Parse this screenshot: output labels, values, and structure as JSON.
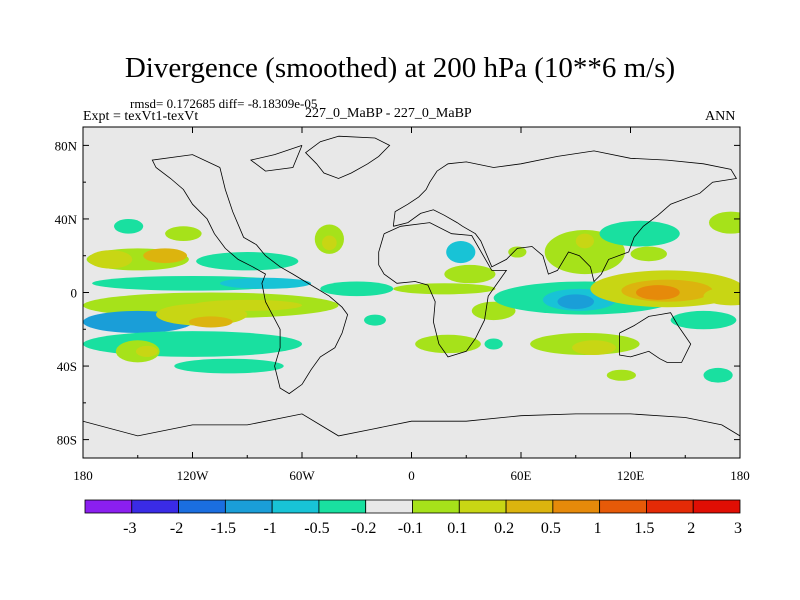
{
  "chart_data": {
    "type": "heatmap",
    "title": "Divergence (smoothed) at 200 hPa (10**6 m/s)",
    "stats": "rmsd= 0.172685 diff= -8.18309e-05",
    "experiment": "Expt = texVt1-texVt",
    "cases": "227_0_MaBP - 227_0_MaBP",
    "season": "ANN",
    "x_range": [
      -180,
      180
    ],
    "y_range": [
      -90,
      90
    ],
    "x_ticks": [
      {
        "value": -180,
        "label": "180"
      },
      {
        "value": -120,
        "label": "120W"
      },
      {
        "value": -60,
        "label": "60W"
      },
      {
        "value": 0,
        "label": "0"
      },
      {
        "value": 60,
        "label": "60E"
      },
      {
        "value": 120,
        "label": "120E"
      },
      {
        "value": 180,
        "label": "180"
      }
    ],
    "y_ticks": [
      {
        "value": 80,
        "label": "80N"
      },
      {
        "value": 40,
        "label": "40N"
      },
      {
        "value": 0,
        "label": "0"
      },
      {
        "value": -40,
        "label": "40S"
      },
      {
        "value": -80,
        "label": "80S"
      }
    ],
    "colorbar": {
      "colors": [
        "#8b1ff0",
        "#3a2be6",
        "#1a6ee0",
        "#1a9ed8",
        "#18c3d6",
        "#19e0a0",
        "#e8e8e8",
        "#a6e21a",
        "#c8d614",
        "#dcb40e",
        "#e68a0a",
        "#e65a08",
        "#e42a06",
        "#e00e04"
      ],
      "labels": [
        "-3",
        "-2",
        "-1.5",
        "-1",
        "-0.5",
        "-0.2",
        "-0.1",
        "0.1",
        "0.2",
        "0.5",
        "1",
        "1.5",
        "2",
        "3"
      ]
    },
    "field_patches": [
      {
        "lon": -150,
        "lat": 18,
        "rx": 28,
        "ry": 6,
        "level": 7
      },
      {
        "lon": -165,
        "lat": 18,
        "rx": 12,
        "ry": 5,
        "level": 8
      },
      {
        "lon": -135,
        "lat": 20,
        "rx": 12,
        "ry": 4,
        "level": 9
      },
      {
        "lon": -90,
        "lat": 17,
        "rx": 28,
        "ry": 5,
        "level": 5
      },
      {
        "lon": -155,
        "lat": 36,
        "rx": 8,
        "ry": 4,
        "level": 5
      },
      {
        "lon": -125,
        "lat": 32,
        "rx": 10,
        "ry": 4,
        "level": 7
      },
      {
        "lon": -45,
        "lat": 29,
        "rx": 8,
        "ry": 8,
        "level": 7
      },
      {
        "lon": -45,
        "lat": 27,
        "rx": 4,
        "ry": 4,
        "level": 8
      },
      {
        "lon": -120,
        "lat": 5,
        "rx": 55,
        "ry": 4,
        "level": 5
      },
      {
        "lon": -80,
        "lat": 5,
        "rx": 25,
        "ry": 3,
        "level": 4
      },
      {
        "lon": -30,
        "lat": 2,
        "rx": 20,
        "ry": 4,
        "level": 5
      },
      {
        "lon": -110,
        "lat": -7,
        "rx": 70,
        "ry": 7,
        "level": 7
      },
      {
        "lon": -90,
        "lat": -7,
        "rx": 30,
        "ry": 3,
        "level": 8
      },
      {
        "lon": -150,
        "lat": -16,
        "rx": 30,
        "ry": 6,
        "level": 3
      },
      {
        "lon": -115,
        "lat": -12,
        "rx": 25,
        "ry": 6,
        "level": 8
      },
      {
        "lon": -110,
        "lat": -16,
        "rx": 12,
        "ry": 3,
        "level": 9
      },
      {
        "lon": -120,
        "lat": -28,
        "rx": 60,
        "ry": 7,
        "level": 5
      },
      {
        "lon": -150,
        "lat": -32,
        "rx": 12,
        "ry": 6,
        "level": 7
      },
      {
        "lon": -145,
        "lat": -32,
        "rx": 6,
        "ry": 3,
        "level": 8
      },
      {
        "lon": -100,
        "lat": -40,
        "rx": 30,
        "ry": 4,
        "level": 5
      },
      {
        "lon": -20,
        "lat": -15,
        "rx": 6,
        "ry": 3,
        "level": 5
      },
      {
        "lon": 27,
        "lat": 22,
        "rx": 8,
        "ry": 6,
        "level": 4
      },
      {
        "lon": 32,
        "lat": 10,
        "rx": 14,
        "ry": 5,
        "level": 7
      },
      {
        "lon": 18,
        "lat": 2,
        "rx": 28,
        "ry": 3,
        "level": 7
      },
      {
        "lon": 45,
        "lat": -10,
        "rx": 12,
        "ry": 5,
        "level": 7
      },
      {
        "lon": 45,
        "lat": -28,
        "rx": 5,
        "ry": 3,
        "level": 5
      },
      {
        "lon": 58,
        "lat": 22,
        "rx": 5,
        "ry": 3,
        "level": 7
      },
      {
        "lon": 95,
        "lat": -3,
        "rx": 50,
        "ry": 9,
        "level": 5
      },
      {
        "lon": 92,
        "lat": -4,
        "rx": 20,
        "ry": 6,
        "level": 4
      },
      {
        "lon": 90,
        "lat": -5,
        "rx": 10,
        "ry": 4,
        "level": 3
      },
      {
        "lon": 140,
        "lat": 2,
        "rx": 42,
        "ry": 10,
        "level": 8
      },
      {
        "lon": 140,
        "lat": 1,
        "rx": 25,
        "ry": 6,
        "level": 9
      },
      {
        "lon": 135,
        "lat": 0,
        "rx": 12,
        "ry": 4,
        "level": 10
      },
      {
        "lon": 175,
        "lat": -2,
        "rx": 15,
        "ry": 5,
        "level": 8
      },
      {
        "lon": 95,
        "lat": 22,
        "rx": 22,
        "ry": 12,
        "level": 7
      },
      {
        "lon": 95,
        "lat": 28,
        "rx": 5,
        "ry": 4,
        "level": 8
      },
      {
        "lon": 125,
        "lat": 32,
        "rx": 22,
        "ry": 7,
        "level": 5
      },
      {
        "lon": 130,
        "lat": 21,
        "rx": 10,
        "ry": 4,
        "level": 7
      },
      {
        "lon": 175,
        "lat": 38,
        "rx": 12,
        "ry": 6,
        "level": 7
      },
      {
        "lon": 95,
        "lat": -28,
        "rx": 30,
        "ry": 6,
        "level": 7
      },
      {
        "lon": 100,
        "lat": -30,
        "rx": 12,
        "ry": 4,
        "level": 8
      },
      {
        "lon": 115,
        "lat": -45,
        "rx": 8,
        "ry": 3,
        "level": 7
      },
      {
        "lon": 168,
        "lat": -45,
        "rx": 8,
        "ry": 4,
        "level": 5
      },
      {
        "lon": 160,
        "lat": -15,
        "rx": 18,
        "ry": 5,
        "level": 5
      },
      {
        "lon": 20,
        "lat": -28,
        "rx": 18,
        "ry": 5,
        "level": 7
      }
    ],
    "continents": [
      [
        [
          -105,
          68
        ],
        [
          -102,
          56
        ],
        [
          -98,
          44
        ],
        [
          -92,
          30
        ],
        [
          -85,
          26
        ],
        [
          -80,
          20
        ],
        [
          -72,
          14
        ],
        [
          -65,
          10
        ],
        [
          -55,
          4
        ],
        [
          -45,
          -2
        ],
        [
          -38,
          -8
        ],
        [
          -35,
          -12
        ],
        [
          -38,
          -22
        ],
        [
          -42,
          -30
        ],
        [
          -50,
          -35
        ],
        [
          -55,
          -42
        ],
        [
          -60,
          -50
        ],
        [
          -67,
          -55
        ],
        [
          -72,
          -52
        ],
        [
          -75,
          -40
        ],
        [
          -72,
          -30
        ],
        [
          -72,
          -20
        ],
        [
          -80,
          -5
        ],
        [
          -82,
          5
        ],
        [
          -80,
          10
        ],
        [
          -87,
          14
        ],
        [
          -95,
          18
        ],
        [
          -102,
          24
        ],
        [
          -108,
          32
        ],
        [
          -112,
          40
        ],
        [
          -120,
          48
        ],
        [
          -125,
          56
        ],
        [
          -132,
          62
        ],
        [
          -140,
          68
        ],
        [
          -142,
          72
        ],
        [
          -120,
          75
        ],
        [
          -105,
          68
        ]
      ],
      [
        [
          -40,
          85
        ],
        [
          -20,
          84
        ],
        [
          -12,
          80
        ],
        [
          -18,
          74
        ],
        [
          -24,
          70
        ],
        [
          -33,
          65
        ],
        [
          -40,
          62
        ],
        [
          -48,
          65
        ],
        [
          -52,
          70
        ],
        [
          -58,
          76
        ],
        [
          -50,
          82
        ],
        [
          -40,
          85
        ]
      ],
      [
        [
          -15,
          32
        ],
        [
          -6,
          36
        ],
        [
          10,
          38
        ],
        [
          22,
          32
        ],
        [
          33,
          31
        ],
        [
          44,
          12
        ],
        [
          52,
          12
        ],
        [
          42,
          -2
        ],
        [
          40,
          -15
        ],
        [
          35,
          -25
        ],
        [
          30,
          -32
        ],
        [
          20,
          -35
        ],
        [
          15,
          -28
        ],
        [
          12,
          -16
        ],
        [
          13,
          -5
        ],
        [
          9,
          4
        ],
        [
          2,
          6
        ],
        [
          -8,
          5
        ],
        [
          -15,
          10
        ],
        [
          -18,
          15
        ],
        [
          -18,
          22
        ],
        [
          -15,
          32
        ]
      ],
      [
        [
          -10,
          36
        ],
        [
          -9,
          44
        ],
        [
          -2,
          48
        ],
        [
          4,
          52
        ],
        [
          8,
          56
        ],
        [
          10,
          60
        ],
        [
          14,
          66
        ],
        [
          20,
          70
        ],
        [
          30,
          71
        ],
        [
          45,
          68
        ],
        [
          60,
          70
        ],
        [
          80,
          74
        ],
        [
          100,
          77
        ],
        [
          120,
          73
        ],
        [
          140,
          72
        ],
        [
          160,
          70
        ],
        [
          175,
          67
        ],
        [
          178,
          62
        ],
        [
          165,
          60
        ],
        [
          158,
          54
        ],
        [
          142,
          48
        ],
        [
          135,
          42
        ],
        [
          127,
          36
        ],
        [
          122,
          30
        ],
        [
          119,
          22
        ],
        [
          108,
          18
        ],
        [
          104,
          10
        ],
        [
          100,
          6
        ],
        [
          98,
          14
        ],
        [
          92,
          20
        ],
        [
          86,
          22
        ],
        [
          80,
          12
        ],
        [
          75,
          10
        ],
        [
          72,
          20
        ],
        [
          66,
          25
        ],
        [
          58,
          24
        ],
        [
          52,
          18
        ],
        [
          44,
          14
        ],
        [
          38,
          28
        ],
        [
          35,
          32
        ],
        [
          28,
          36
        ],
        [
          25,
          38
        ],
        [
          18,
          42
        ],
        [
          12,
          45
        ],
        [
          5,
          43
        ],
        [
          -2,
          38
        ],
        [
          -10,
          36
        ]
      ],
      [
        [
          114,
          -22
        ],
        [
          114,
          -34
        ],
        [
          120,
          -35
        ],
        [
          130,
          -32
        ],
        [
          136,
          -36
        ],
        [
          140,
          -38
        ],
        [
          148,
          -38
        ],
        [
          153,
          -28
        ],
        [
          146,
          -18
        ],
        [
          142,
          -11
        ],
        [
          136,
          -12
        ],
        [
          130,
          -13
        ],
        [
          122,
          -18
        ],
        [
          114,
          -22
        ]
      ],
      [
        [
          -180,
          -70
        ],
        [
          -150,
          -78
        ],
        [
          -120,
          -72
        ],
        [
          -90,
          -72
        ],
        [
          -60,
          -66
        ],
        [
          -40,
          -78
        ],
        [
          -20,
          -74
        ],
        [
          0,
          -70
        ],
        [
          30,
          -70
        ],
        [
          60,
          -67
        ],
        [
          90,
          -66
        ],
        [
          120,
          -66
        ],
        [
          150,
          -68
        ],
        [
          170,
          -72
        ],
        [
          180,
          -78
        ]
      ],
      [
        [
          -60,
          80
        ],
        [
          -75,
          75
        ],
        [
          -88,
          72
        ],
        [
          -80,
          66
        ],
        [
          -65,
          68
        ],
        [
          -60,
          80
        ]
      ]
    ]
  }
}
